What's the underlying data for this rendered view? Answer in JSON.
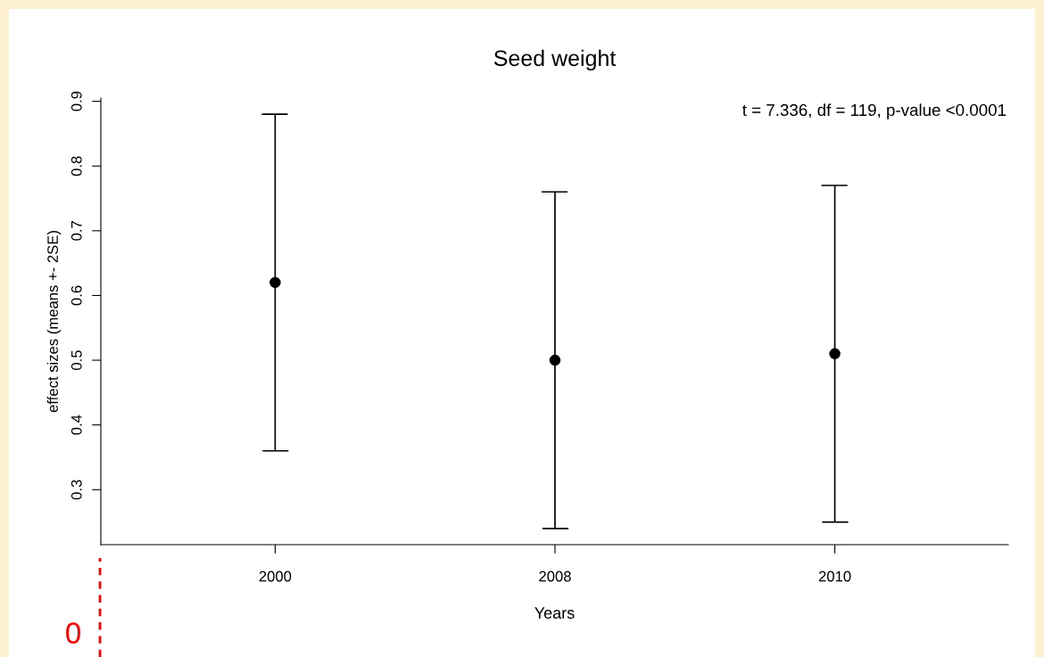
{
  "chart_data": {
    "type": "scatter",
    "title": "Seed weight",
    "xlabel": "Years",
    "ylabel": "effect sizes (means +- 2SE)",
    "categories": [
      "2000",
      "2008",
      "2010"
    ],
    "color": "#000000",
    "values": [
      0.62,
      0.5,
      0.51
    ],
    "errors": [
      0.26,
      0.26,
      0.26
    ],
    "ylim": [
      0.215,
      0.905
    ],
    "yticks": [
      0.3,
      0.4,
      0.5,
      0.6,
      0.7,
      0.8,
      0.9
    ],
    "marker": "circle",
    "grid": false,
    "legend": false,
    "annotations": [
      "t = 7.336, df = 119, p-value <0.0001",
      "0"
    ]
  }
}
